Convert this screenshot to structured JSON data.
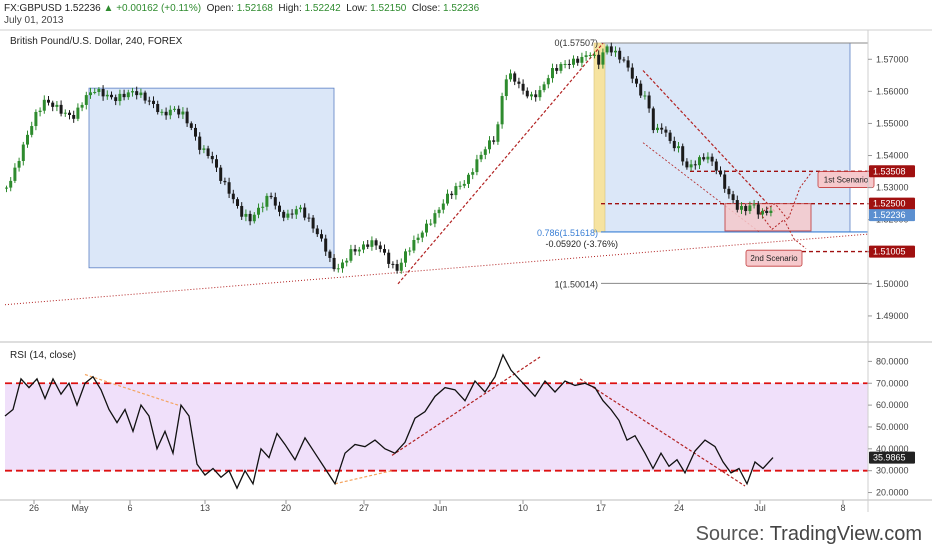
{
  "header": {
    "symbol": "FX:GBPUSD",
    "last": "1.52236",
    "change": "+0.00162 (+0.11%)",
    "open_label": "Open:",
    "open": "1.52168",
    "high_label": "High:",
    "high": "1.52242",
    "low_label": "Low:",
    "low": "1.52150",
    "close_label": "Close:",
    "close": "1.52236",
    "date": "July 01, 2013"
  },
  "source": {
    "label": "Source: ",
    "brand": "TradingView.com"
  },
  "colors": {
    "up_candle": "#2e8b2e",
    "down_candle": "#1a1a1a",
    "box_fill": "#dbe7f8",
    "box_stroke": "#5b7fc4",
    "trend_red": "#b22222",
    "level_dark_red": "#a01010",
    "rsi_band": "#f0e0fa",
    "rsi_level": "#dd1111",
    "orange_dash": "#f4a460",
    "fib_gold": "#f6e3a0",
    "fib_blue": "#3a7fd5",
    "scenario_box": "#f6c9cc"
  },
  "chart_data": [
    {
      "type": "candlestick",
      "title": "British Pound/U.S. Dollar, 240, FOREX",
      "x_ticks": [
        "26",
        "May",
        "6",
        "13",
        "20",
        "27",
        "Jun",
        "10",
        "17",
        "24",
        "Jul",
        "8"
      ],
      "y_ticks": [
        "1.57000",
        "1.56000",
        "1.55000",
        "1.54000",
        "1.53000",
        "1.52000",
        "1.51000",
        "1.50000",
        "1.49000"
      ],
      "ylim": [
        1.4825,
        1.5785
      ],
      "price_path": [
        [
          0,
          1.53
        ],
        [
          8,
          1.535
        ],
        [
          18,
          1.544
        ],
        [
          28,
          1.552
        ],
        [
          38,
          1.557
        ],
        [
          48,
          1.5555
        ],
        [
          58,
          1.553
        ],
        [
          68,
          1.552
        ],
        [
          78,
          1.558
        ],
        [
          88,
          1.5605
        ],
        [
          98,
          1.559
        ],
        [
          108,
          1.5575
        ],
        [
          118,
          1.559
        ],
        [
          128,
          1.56
        ],
        [
          138,
          1.558
        ],
        [
          148,
          1.5555
        ],
        [
          156,
          1.5525
        ],
        [
          166,
          1.5545
        ],
        [
          176,
          1.553
        ],
        [
          184,
          1.549
        ],
        [
          194,
          1.542
        ],
        [
          204,
          1.54
        ],
        [
          214,
          1.533
        ],
        [
          224,
          1.528
        ],
        [
          234,
          1.522
        ],
        [
          244,
          1.52
        ],
        [
          254,
          1.524
        ],
        [
          264,
          1.528
        ],
        [
          272,
          1.522
        ],
        [
          282,
          1.521
        ],
        [
          292,
          1.524
        ],
        [
          302,
          1.52
        ],
        [
          310,
          1.516
        ],
        [
          318,
          1.512
        ],
        [
          326,
          1.505
        ],
        [
          334,
          1.505
        ],
        [
          344,
          1.51
        ],
        [
          354,
          1.511
        ],
        [
          364,
          1.513
        ],
        [
          372,
          1.512
        ],
        [
          380,
          1.508
        ],
        [
          390,
          1.504
        ],
        [
          400,
          1.51
        ],
        [
          410,
          1.514
        ],
        [
          420,
          1.518
        ],
        [
          430,
          1.522
        ],
        [
          440,
          1.527
        ],
        [
          450,
          1.53
        ],
        [
          460,
          1.532
        ],
        [
          470,
          1.538
        ],
        [
          480,
          1.543
        ],
        [
          490,
          1.546
        ],
        [
          498,
          1.564
        ],
        [
          506,
          1.565
        ],
        [
          514,
          1.561
        ],
        [
          524,
          1.558
        ],
        [
          534,
          1.56
        ],
        [
          544,
          1.566
        ],
        [
          554,
          1.568
        ],
        [
          564,
          1.569
        ],
        [
          574,
          1.57
        ],
        [
          584,
          1.572
        ],
        [
          592,
          1.569
        ],
        [
          600,
          1.574
        ],
        [
          608,
          1.572
        ],
        [
          616,
          1.57
        ],
        [
          624,
          1.566
        ],
        [
          632,
          1.56
        ],
        [
          640,
          1.558
        ],
        [
          648,
          1.547
        ],
        [
          656,
          1.549
        ],
        [
          664,
          1.544
        ],
        [
          672,
          1.542
        ],
        [
          680,
          1.536
        ],
        [
          690,
          1.538
        ],
        [
          700,
          1.54
        ],
        [
          710,
          1.536
        ],
        [
          720,
          1.529
        ],
        [
          730,
          1.524
        ],
        [
          738,
          1.523
        ],
        [
          746,
          1.525
        ],
        [
          754,
          1.5215
        ],
        [
          762,
          1.523
        ],
        [
          768,
          1.5224
        ]
      ],
      "right_labels": [
        "1.53508",
        "1.52500",
        "1.52236",
        "1.51005"
      ],
      "fib": {
        "top": "0(1.57507)",
        "level": "0.786(1.51618)",
        "change": "-0.05920 (-3.76%)",
        "bottom": "1(1.50014)",
        "top_value": 1.57507,
        "level_value": 1.51618,
        "bottom_value": 1.50014
      },
      "annotations": [
        "1st Scenario",
        "2nd Scenario"
      ],
      "levels": [
        1.53508,
        1.525,
        1.51005
      ]
    },
    {
      "type": "line",
      "title": "RSI (14, close)",
      "y_ticks": [
        "80.0000",
        "70.0000",
        "60.0000",
        "50.0000",
        "40.0000",
        "30.0000",
        "20.0000"
      ],
      "ylim": [
        17.5,
        87.5
      ],
      "last_value": "35.9865",
      "levels": [
        70,
        30
      ],
      "rsi_path": [
        [
          0,
          55
        ],
        [
          8,
          58
        ],
        [
          16,
          72
        ],
        [
          24,
          68
        ],
        [
          32,
          72
        ],
        [
          40,
          63
        ],
        [
          48,
          72
        ],
        [
          56,
          65
        ],
        [
          64,
          70
        ],
        [
          72,
          60
        ],
        [
          80,
          70
        ],
        [
          88,
          73
        ],
        [
          96,
          67
        ],
        [
          104,
          58
        ],
        [
          112,
          52
        ],
        [
          120,
          58
        ],
        [
          128,
          48
        ],
        [
          136,
          60
        ],
        [
          144,
          55
        ],
        [
          152,
          40
        ],
        [
          160,
          48
        ],
        [
          168,
          38
        ],
        [
          176,
          60
        ],
        [
          184,
          55
        ],
        [
          192,
          33
        ],
        [
          200,
          28
        ],
        [
          208,
          31
        ],
        [
          216,
          27
        ],
        [
          224,
          30
        ],
        [
          232,
          22
        ],
        [
          240,
          30
        ],
        [
          248,
          24
        ],
        [
          256,
          40
        ],
        [
          264,
          36
        ],
        [
          272,
          47
        ],
        [
          280,
          42
        ],
        [
          290,
          35
        ],
        [
          300,
          45
        ],
        [
          310,
          38
        ],
        [
          320,
          31
        ],
        [
          330,
          24
        ],
        [
          340,
          38
        ],
        [
          350,
          42
        ],
        [
          360,
          41
        ],
        [
          370,
          44
        ],
        [
          380,
          40
        ],
        [
          390,
          38
        ],
        [
          400,
          43
        ],
        [
          410,
          54
        ],
        [
          420,
          57
        ],
        [
          430,
          64
        ],
        [
          440,
          68
        ],
        [
          450,
          67
        ],
        [
          460,
          62
        ],
        [
          470,
          71
        ],
        [
          480,
          66
        ],
        [
          490,
          73
        ],
        [
          498,
          83
        ],
        [
          506,
          76
        ],
        [
          514,
          72
        ],
        [
          522,
          68
        ],
        [
          530,
          64
        ],
        [
          540,
          71
        ],
        [
          550,
          66
        ],
        [
          560,
          71
        ],
        [
          570,
          69
        ],
        [
          580,
          70
        ],
        [
          590,
          68
        ],
        [
          598,
          62
        ],
        [
          606,
          58
        ],
        [
          614,
          53
        ],
        [
          622,
          44
        ],
        [
          630,
          46
        ],
        [
          640,
          38
        ],
        [
          648,
          31
        ],
        [
          656,
          38
        ],
        [
          664,
          32
        ],
        [
          672,
          35
        ],
        [
          680,
          29
        ],
        [
          690,
          39
        ],
        [
          700,
          44
        ],
        [
          710,
          41
        ],
        [
          718,
          34
        ],
        [
          726,
          29
        ],
        [
          734,
          31
        ],
        [
          742,
          24
        ],
        [
          750,
          34
        ],
        [
          758,
          31
        ],
        [
          768,
          36
        ]
      ]
    }
  ]
}
